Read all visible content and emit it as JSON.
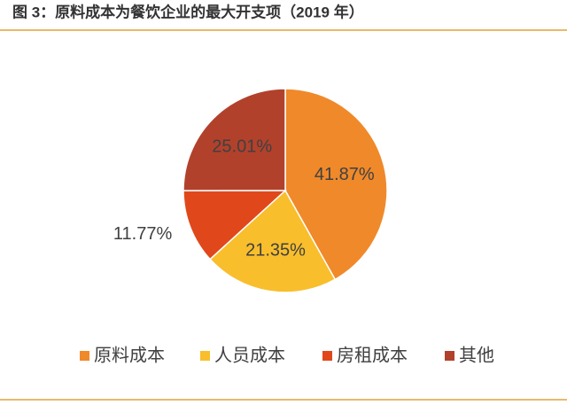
{
  "chart_data": {
    "type": "pie",
    "title": "图 3：原料成本为餐饮企业的最大开支项（2019 年）",
    "categories": [
      "原料成本",
      "人员成本",
      "房租成本",
      "其他"
    ],
    "values": [
      41.87,
      21.35,
      11.77,
      25.01
    ],
    "value_labels": [
      "41.87%",
      "21.35%",
      "11.77%",
      "25.01%"
    ],
    "colors": [
      "#f0892a",
      "#f9be2c",
      "#e0481c",
      "#b2412c"
    ],
    "legend": "bottom"
  }
}
